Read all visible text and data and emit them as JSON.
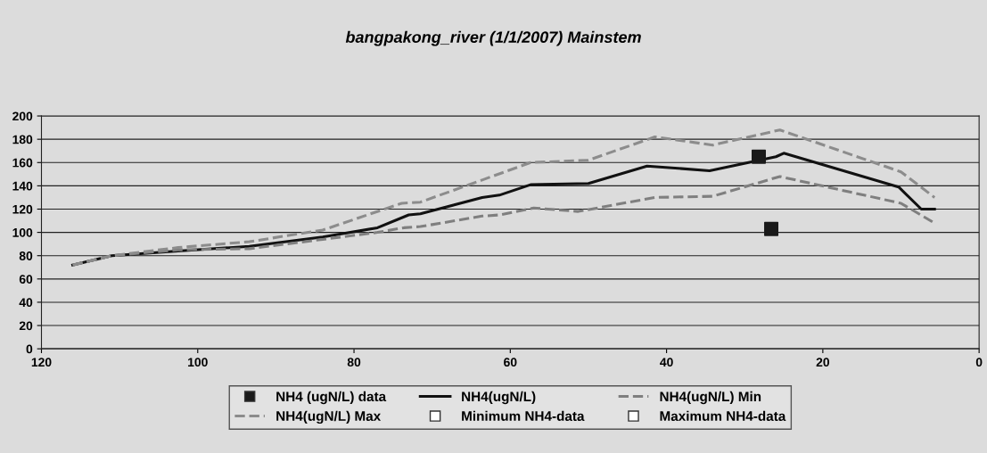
{
  "chart_data": {
    "type": "line",
    "title": "bangpakong_river (1/1/2007) Mainstem",
    "xlim": [
      120,
      0
    ],
    "xticks": [
      120,
      100,
      80,
      60,
      40,
      20,
      0
    ],
    "ylim": [
      0,
      200
    ],
    "yticks": [
      0,
      20,
      40,
      60,
      80,
      100,
      120,
      140,
      160,
      180,
      200
    ],
    "grid": "y",
    "legend": "bottom",
    "series": [
      {
        "name": "NH4 (ugN/L) data",
        "type": "scatter",
        "marker": "square",
        "color": "#1a1a1a",
        "x": [
          28.2,
          26.6
        ],
        "values": [
          165,
          103
        ]
      },
      {
        "name": "NH4(ugN/L)",
        "line_style": "solid",
        "marker": "none",
        "color": "#111111",
        "x": [
          116,
          111,
          102.5,
          93.4,
          84,
          77,
          73,
          71.5,
          63.6,
          61.4,
          57.4,
          50,
          42.5,
          34.5,
          26,
          25,
          10.3,
          7.4,
          5.7
        ],
        "values": [
          72,
          80,
          84,
          88,
          96,
          104,
          115,
          116,
          130,
          132,
          141,
          142,
          157,
          153,
          165,
          168,
          139,
          120,
          120
        ]
      },
      {
        "name": "NH4(ugN/L) Min",
        "line_style": "dashed",
        "marker": "none",
        "color": "#7f7f7f",
        "x": [
          116,
          111,
          102.5,
          93.4,
          84,
          77,
          73.6,
          71.5,
          63.6,
          61.4,
          57,
          51.3,
          41.5,
          34.1,
          25.5,
          10,
          5.7
        ],
        "values": [
          72,
          80,
          85,
          86,
          94,
          100,
          104,
          105,
          114,
          115,
          121,
          118,
          130,
          131,
          148,
          125,
          108
        ]
      },
      {
        "name": "NH4(ugN/L) Max",
        "line_style": "dashed",
        "marker": "none",
        "color": "#8c8c8c",
        "x": [
          116,
          111,
          102.5,
          93.4,
          84,
          73.9,
          71.5,
          63.6,
          57.4,
          50,
          41.5,
          34.1,
          25.5,
          10,
          5.7
        ],
        "values": [
          72,
          80,
          87,
          92,
          102,
          125,
          126,
          145,
          160,
          162,
          182,
          175,
          188,
          152,
          130
        ]
      },
      {
        "name": "Minimum NH4-data",
        "type": "scatter",
        "marker": "square",
        "color": "#ffffff"
      },
      {
        "name": "Maximum NH4-data",
        "type": "scatter",
        "marker": "square",
        "color": "#ffffff"
      }
    ]
  }
}
